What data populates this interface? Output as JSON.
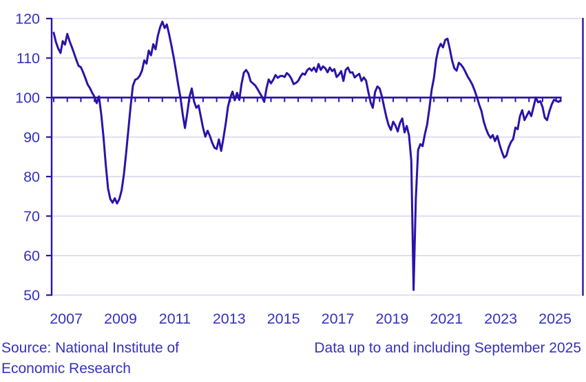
{
  "chart_data": {
    "type": "line",
    "title": "",
    "xlabel": "",
    "ylabel": "",
    "ylim": [
      50,
      120
    ],
    "yticks": [
      50,
      60,
      70,
      80,
      90,
      100,
      110,
      120
    ],
    "year_labels": [
      "2007",
      "2009",
      "2011",
      "2013",
      "2015",
      "2017",
      "2019",
      "2021",
      "2023",
      "2025"
    ],
    "reference_line": 100,
    "grid": true,
    "legend": "none",
    "colors": {
      "line": "#2B12A8",
      "axis": "#2B12A8",
      "grid": "#DBDAEF",
      "text": "#3531C0",
      "background": "#FFFFFF"
    },
    "series": [
      {
        "name": "monthly-index",
        "frequency": "monthly",
        "start": "2007-01",
        "end": "2025-09",
        "values": [
          116.4,
          114.0,
          112.4,
          111.3,
          114.3,
          113.4,
          116.1,
          114.3,
          112.8,
          111.2,
          109.5,
          108.0,
          107.7,
          106.4,
          104.9,
          103.3,
          102.4,
          101.2,
          100.2,
          98.6,
          100.3,
          95.8,
          90.0,
          83.0,
          77.0,
          74.3,
          73.4,
          74.5,
          73.2,
          74.3,
          76.5,
          80.5,
          86.0,
          92.0,
          98.0,
          103.0,
          104.5,
          104.8,
          105.5,
          106.8,
          109.4,
          108.6,
          111.9,
          110.7,
          113.5,
          112.2,
          115.6,
          117.8,
          119.2,
          117.6,
          118.5,
          116.0,
          113.2,
          110.2,
          106.8,
          103.2,
          100.0,
          95.8,
          92.3,
          96.0,
          100.2,
          102.3,
          99.0,
          97.4,
          98.0,
          95.2,
          92.3,
          90.1,
          91.6,
          90.3,
          88.6,
          87.3,
          87.0,
          89.4,
          86.5,
          89.8,
          93.4,
          97.7,
          100.0,
          101.5,
          99.3,
          101.2,
          99.4,
          103.5,
          106.3,
          107.0,
          106.1,
          104.1,
          103.6,
          103.1,
          102.2,
          101.2,
          100.2,
          98.9,
          102.3,
          104.6,
          103.6,
          104.5,
          105.7,
          105.0,
          105.4,
          105.5,
          105.2,
          106.2,
          105.7,
          104.8,
          103.4,
          103.7,
          104.2,
          105.3,
          106.1,
          105.8,
          106.9,
          107.4,
          106.8,
          107.6,
          106.5,
          108.5,
          107.0,
          107.9,
          107.4,
          106.4,
          107.6,
          106.7,
          107.2,
          105.2,
          105.8,
          106.7,
          104.2,
          107.0,
          107.6,
          106.3,
          106.4,
          105.1,
          105.6,
          106.0,
          104.2,
          105.1,
          104.3,
          101.4,
          98.8,
          97.4,
          101.4,
          102.8,
          102.3,
          100.3,
          97.6,
          95.0,
          93.0,
          91.8,
          93.9,
          92.9,
          91.4,
          93.6,
          94.7,
          91.2,
          92.8,
          90.4,
          84.0,
          51.3,
          74.5,
          86.8,
          88.2,
          87.7,
          90.7,
          93.2,
          97.3,
          102.0,
          105.0,
          109.7,
          112.4,
          113.6,
          112.7,
          114.6,
          114.9,
          112.3,
          109.4,
          107.4,
          106.8,
          108.8,
          108.3,
          107.5,
          106.4,
          105.2,
          104.3,
          103.2,
          101.8,
          100.1,
          98.2,
          96.6,
          93.9,
          92.1,
          90.7,
          89.8,
          90.5,
          89.0,
          90.3,
          88.1,
          86.3,
          84.8,
          85.3,
          87.3,
          88.7,
          89.5,
          92.4,
          92.0,
          95.3,
          96.8,
          94.3,
          95.4,
          96.5,
          95.3,
          97.6,
          100.0,
          98.8,
          99.1,
          97.6,
          94.9,
          94.3,
          96.5,
          98.2,
          99.4,
          99.2,
          98.9,
          99.3
        ]
      }
    ]
  },
  "footer": {
    "source_line1": "Source: National Institute of",
    "source_line2": "Economic Research",
    "data_note": "Data up to and including September 2025"
  }
}
